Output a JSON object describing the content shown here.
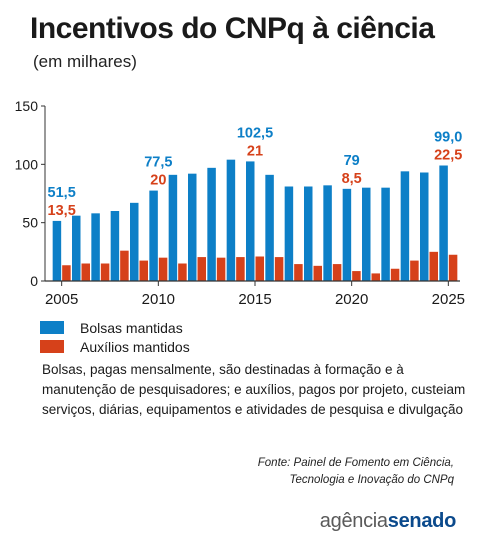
{
  "header": {
    "title": "Incentivos do CNPq à ciência",
    "subtitle": "(em milhares)"
  },
  "colors": {
    "blue": "#0d7fc7",
    "red": "#d6411a"
  },
  "chart_data": {
    "type": "bar",
    "title": "Incentivos do CNPq à ciência",
    "subtitle": "(em milhares)",
    "xlabel": "",
    "ylabel": "",
    "ylim": [
      0,
      150
    ],
    "yticks": [
      0,
      50,
      100,
      150
    ],
    "xticks": [
      2005,
      2010,
      2015,
      2020,
      2025
    ],
    "grid": false,
    "categories": [
      2005,
      2006,
      2007,
      2008,
      2009,
      2010,
      2011,
      2012,
      2013,
      2014,
      2015,
      2016,
      2017,
      2018,
      2019,
      2020,
      2021,
      2022,
      2023,
      2024,
      2025
    ],
    "series": [
      {
        "name": "Bolsas mantidas",
        "color": "#0d7fc7",
        "values": [
          51.5,
          56,
          58,
          60,
          67,
          77.5,
          91,
          92,
          97,
          104,
          102.5,
          91,
          81,
          81,
          82,
          79,
          80,
          80,
          94,
          93,
          99.0
        ]
      },
      {
        "name": "Auxílios mantidos",
        "color": "#d6411a",
        "values": [
          13.5,
          15,
          15,
          26,
          17.5,
          20,
          15,
          20.5,
          20,
          20.5,
          21,
          20.5,
          14.5,
          13,
          14.5,
          8.5,
          6.5,
          10.5,
          17.5,
          25,
          22.5
        ]
      }
    ],
    "data_labels": [
      {
        "year": 2005,
        "series": 0,
        "text": "51,5"
      },
      {
        "year": 2005,
        "series": 1,
        "text": "13,5"
      },
      {
        "year": 2010,
        "series": 0,
        "text": "77,5"
      },
      {
        "year": 2010,
        "series": 1,
        "text": "20"
      },
      {
        "year": 2015,
        "series": 0,
        "text": "102,5"
      },
      {
        "year": 2015,
        "series": 1,
        "text": "21"
      },
      {
        "year": 2020,
        "series": 0,
        "text": "79"
      },
      {
        "year": 2020,
        "series": 1,
        "text": "8,5"
      },
      {
        "year": 2025,
        "series": 0,
        "text": "99,0"
      },
      {
        "year": 2025,
        "series": 1,
        "text": "22,5"
      }
    ]
  },
  "legend": {
    "items": [
      {
        "label": "Bolsas mantidas",
        "color": "#0d7fc7"
      },
      {
        "label": "Auxílios mantidos",
        "color": "#d6411a"
      }
    ]
  },
  "note": "Bolsas, pagas mensalmente, são destinadas à formação e à manutenção de pesquisadores; e auxílios, pagos por projeto, custeiam serviços, diárias, equipamentos e atividades de pesquisa e divulgação",
  "source": {
    "line1": "Fonte: Painel de Fomento em Ciência,",
    "line2": "Tecnologia e Inovação do CNPq"
  },
  "logo": {
    "part1": "agência",
    "part2": "senado"
  }
}
